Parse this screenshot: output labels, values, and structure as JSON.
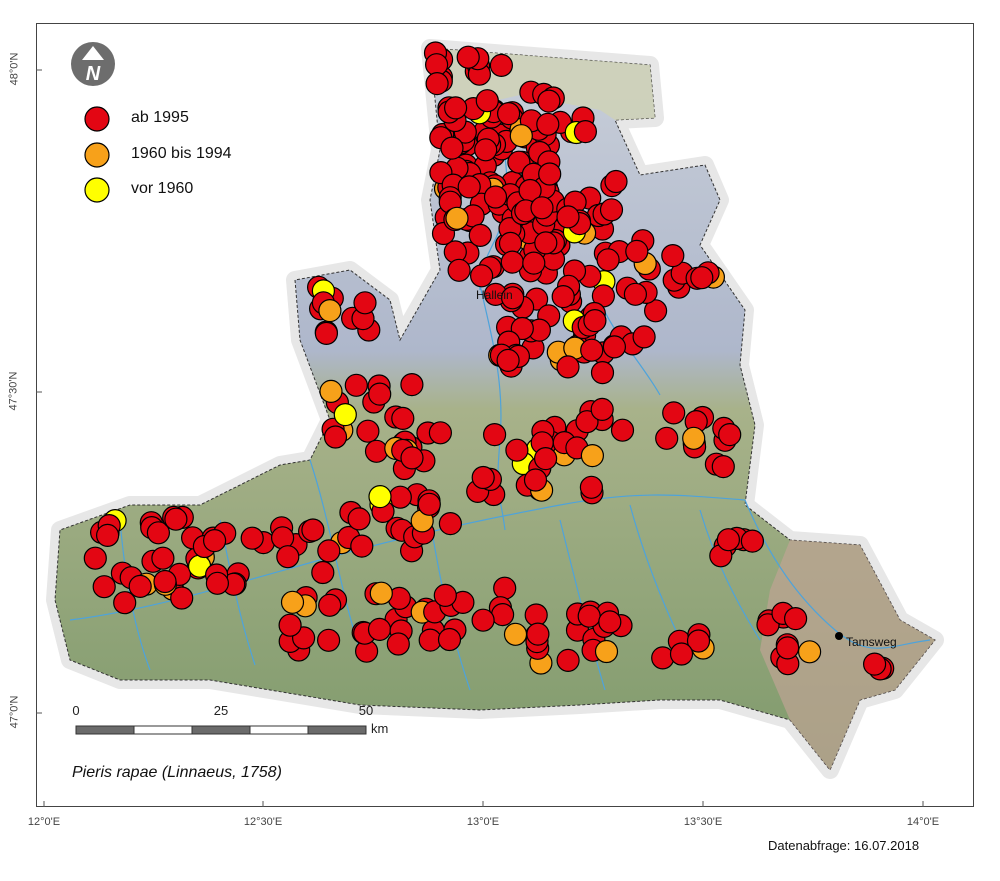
{
  "map": {
    "graticule": {
      "longitude_labels": [
        "12°0'E",
        "12°30'E",
        "13°0'E",
        "13°30'E",
        "14°0'E"
      ],
      "latitude_labels": [
        "48°0'N",
        "47°30'N",
        "47°0'N"
      ]
    },
    "north_arrow": {
      "letter": "N",
      "icon": "north-arrow-icon"
    },
    "legend": [
      {
        "label": "ab 1995",
        "color": "#e30613"
      },
      {
        "label": "1960 bis 1994",
        "color": "#f7a11a"
      },
      {
        "label": "vor 1960",
        "color": "#ffff00"
      }
    ],
    "places": [
      {
        "name": "Hallein",
        "lon": 13.1,
        "lat": 47.68
      },
      {
        "name": "Tamsweg",
        "lon": 13.81,
        "lat": 47.13
      }
    ],
    "scale_bar": {
      "ticks": [
        "0",
        "25",
        "50"
      ],
      "unit": "km"
    },
    "species": "Pieris rapae (Linnaeus, 1758)",
    "data_query": "Datenabfrage: 16.07.2018",
    "colors": {
      "region_green": "#8fa878",
      "region_blue": "#a9b4c8",
      "region_brown": "#b89a8a",
      "region_beige": "#cfd2b4",
      "halo": "#d9d9d9",
      "river": "#55a9d9",
      "outline": "#222222"
    }
  }
}
